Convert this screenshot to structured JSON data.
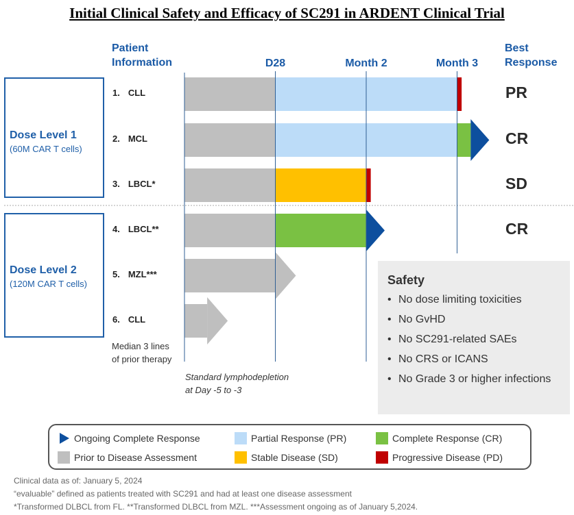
{
  "title": "Initial Clinical Safety and Efficacy of SC291 in ARDENT Clinical Trial",
  "headers": {
    "patient": [
      "Patient",
      "Information"
    ],
    "best": [
      "Best",
      "Response"
    ]
  },
  "dose_levels": [
    {
      "title": "Dose Level 1",
      "subtitle": "(60M CAR T cells)"
    },
    {
      "title": "Dose Level 2",
      "subtitle": "(120M CAR T cells)"
    }
  ],
  "median_note": [
    "Median 3 lines",
    "of prior therapy"
  ],
  "lymphodepletion_note": [
    "Standard lymphodepletion",
    "at Day -5 to -3"
  ],
  "safety": {
    "title": "Safety",
    "items": [
      "No dose limiting toxicities",
      "No GvHD",
      "No SC291-related SAEs",
      "No CRS or ICANS",
      "No Grade 3 or higher infections"
    ]
  },
  "legend": [
    {
      "label": "Ongoing Complete Response",
      "key": "ongoing",
      "color": "#0d4f9e"
    },
    {
      "label": "Partial Response (PR)",
      "key": "pr",
      "color": "#bcdcf8"
    },
    {
      "label": "Complete Response (CR)",
      "key": "cr",
      "color": "#7ac143"
    },
    {
      "label": "Prior to Disease Assessment",
      "key": "prior",
      "color": "#bfbfbf"
    },
    {
      "label": "Stable Disease (SD)",
      "key": "sd",
      "color": "#ffc000"
    },
    {
      "label": "Progressive Disease (PD)",
      "key": "pd",
      "color": "#c00000"
    }
  ],
  "footnotes": [
    "Clinical data as of: January 5, 2024",
    "“evaluable” defined as patients treated with SC291 and had at least one disease assessment",
    "*Transformed DLBCL from FL. **Transformed DLBCL from MZL. ***Assessment ongoing as of January 5,2024."
  ],
  "chart_data": {
    "type": "swimmer",
    "time_markers": [
      {
        "label": "D28",
        "t": 1
      },
      {
        "label": "Month 2",
        "t": 2
      },
      {
        "label": "Month 3",
        "t": 3
      }
    ],
    "patients": [
      {
        "num": "1.",
        "label": "CLL",
        "dose": 1,
        "response": "PR",
        "segments": [
          {
            "status": "prior",
            "start": 0,
            "end": 1
          },
          {
            "status": "pr",
            "start": 1,
            "end": 3
          },
          {
            "status": "pd",
            "start": 3,
            "end": 3.05
          }
        ],
        "ongoing": false
      },
      {
        "num": "2.",
        "label": "MCL",
        "dose": 1,
        "response": "CR",
        "segments": [
          {
            "status": "prior",
            "start": 0,
            "end": 1
          },
          {
            "status": "pr",
            "start": 1,
            "end": 3
          },
          {
            "status": "cr",
            "start": 3,
            "end": 3.15
          }
        ],
        "ongoing": true
      },
      {
        "num": "3.",
        "label": "LBCL*",
        "dose": 1,
        "response": "SD",
        "segments": [
          {
            "status": "prior",
            "start": 0,
            "end": 1
          },
          {
            "status": "sd",
            "start": 1,
            "end": 2
          },
          {
            "status": "pd",
            "start": 2,
            "end": 2.05
          }
        ],
        "ongoing": false
      },
      {
        "num": "4.",
        "label": "LBCL**",
        "dose": 2,
        "response": "CR",
        "segments": [
          {
            "status": "prior",
            "start": 0,
            "end": 1
          },
          {
            "status": "cr",
            "start": 1,
            "end": 2
          }
        ],
        "ongoing": true
      },
      {
        "num": "5.",
        "label": "MZL***",
        "dose": 2,
        "response": "",
        "segments": [
          {
            "status": "prior",
            "start": 0,
            "end": 1
          }
        ],
        "ongoing": false
      },
      {
        "num": "6.",
        "label": "CLL",
        "dose": 2,
        "response": "",
        "segments": [
          {
            "status": "prior",
            "start": 0,
            "end": 0.25
          }
        ],
        "ongoing": false
      }
    ]
  }
}
